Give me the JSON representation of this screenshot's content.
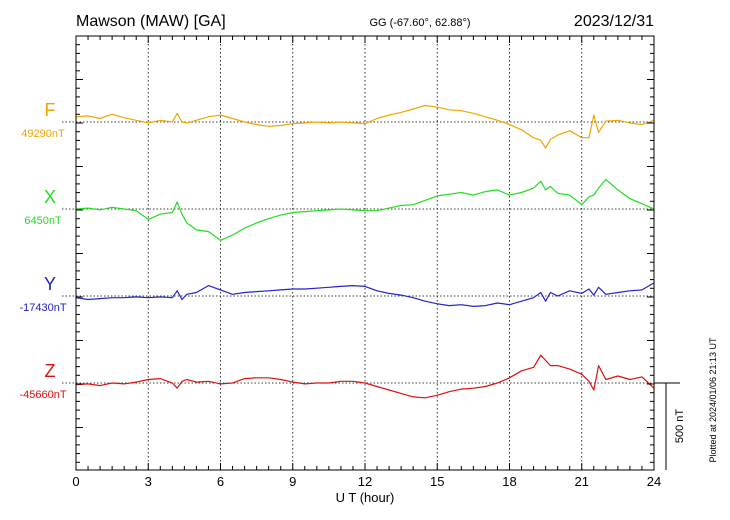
{
  "chart_data": {
    "type": "line",
    "station": "Mawson (MAW)  [GA]",
    "coords": "GG (-67.60°,  62.88°)",
    "date": "2023/12/31",
    "xlabel": "U T (hour)",
    "xlim": [
      0,
      24
    ],
    "xticks": [
      "0",
      "3",
      "6",
      "9",
      "12",
      "15",
      "18",
      "21",
      "24"
    ],
    "scale_label": "500 nT",
    "scale_nT": 500,
    "plotted_note": "Plotted at 2024/01/06 21:13 UT",
    "grid": true,
    "series": [
      {
        "name": "F",
        "baseline_label": "49290nT",
        "baseline": 49290,
        "color": "#f0a500",
        "x": [
          0,
          0.5,
          1,
          1.5,
          2,
          2.5,
          3,
          3.5,
          4,
          4.2,
          4.4,
          4.6,
          5,
          5.5,
          6,
          6.5,
          7,
          7.5,
          8,
          8.5,
          9,
          9.5,
          10,
          10.5,
          11,
          11.5,
          12,
          12.5,
          13,
          13.5,
          14,
          14.5,
          15,
          15.5,
          16,
          16.5,
          17,
          17.5,
          18,
          18.5,
          19,
          19.3,
          19.5,
          19.7,
          20,
          20.5,
          21,
          21.3,
          21.5,
          21.7,
          22,
          22.5,
          23,
          23.5,
          24
        ],
        "y": [
          49320,
          49325,
          49310,
          49335,
          49315,
          49300,
          49285,
          49300,
          49290,
          49340,
          49290,
          49285,
          49300,
          49320,
          49330,
          49310,
          49290,
          49275,
          49265,
          49270,
          49280,
          49285,
          49290,
          49285,
          49290,
          49285,
          49280,
          49310,
          49330,
          49345,
          49365,
          49385,
          49375,
          49360,
          49355,
          49340,
          49320,
          49300,
          49275,
          49245,
          49200,
          49185,
          49140,
          49190,
          49215,
          49240,
          49200,
          49200,
          49330,
          49230,
          49295,
          49300,
          49285,
          49275,
          49300
        ]
      },
      {
        "name": "X",
        "baseline_label": "6450nT",
        "baseline": 6450,
        "color": "#22dd22",
        "x": [
          0,
          0.5,
          1,
          1.5,
          2,
          2.5,
          3,
          3.5,
          4,
          4.2,
          4.4,
          4.6,
          5,
          5.5,
          6,
          6.5,
          7,
          7.5,
          8,
          8.5,
          9,
          9.5,
          10,
          10.5,
          11,
          11.5,
          12,
          12.5,
          13,
          13.5,
          14,
          14.5,
          15,
          15.5,
          16,
          16.5,
          17,
          17.5,
          18,
          18.5,
          19,
          19.3,
          19.5,
          19.7,
          20,
          20.5,
          21,
          21.3,
          21.5,
          21.7,
          22,
          22.5,
          23,
          23.5,
          24
        ],
        "y": [
          6450,
          6455,
          6445,
          6460,
          6450,
          6440,
          6390,
          6420,
          6430,
          6490,
          6420,
          6370,
          6330,
          6320,
          6270,
          6300,
          6340,
          6370,
          6395,
          6415,
          6430,
          6435,
          6440,
          6445,
          6450,
          6445,
          6440,
          6440,
          6455,
          6470,
          6475,
          6500,
          6525,
          6535,
          6545,
          6530,
          6550,
          6560,
          6530,
          6545,
          6570,
          6610,
          6560,
          6580,
          6540,
          6530,
          6475,
          6520,
          6530,
          6570,
          6620,
          6560,
          6510,
          6480,
          6450
        ]
      },
      {
        "name": "Y",
        "baseline_label": "-17430nT",
        "baseline": -17430,
        "color": "#2222cc",
        "x": [
          0,
          0.5,
          1,
          1.5,
          2,
          2.5,
          3,
          3.5,
          4,
          4.2,
          4.4,
          4.6,
          5,
          5.5,
          6,
          6.5,
          7,
          7.5,
          8,
          8.5,
          9,
          9.5,
          10,
          10.5,
          11,
          11.5,
          12,
          12.5,
          13,
          13.5,
          14,
          14.5,
          15,
          15.5,
          16,
          16.5,
          17,
          17.5,
          18,
          18.5,
          19,
          19.3,
          19.5,
          19.7,
          20,
          20.5,
          21,
          21.3,
          21.5,
          21.7,
          22,
          22.5,
          23,
          23.5,
          24
        ],
        "y": [
          -17440,
          -17450,
          -17445,
          -17440,
          -17440,
          -17435,
          -17440,
          -17435,
          -17440,
          -17400,
          -17450,
          -17420,
          -17410,
          -17370,
          -17395,
          -17420,
          -17410,
          -17405,
          -17400,
          -17395,
          -17390,
          -17390,
          -17385,
          -17380,
          -17375,
          -17370,
          -17375,
          -17400,
          -17415,
          -17425,
          -17440,
          -17460,
          -17475,
          -17485,
          -17480,
          -17490,
          -17485,
          -17470,
          -17480,
          -17460,
          -17440,
          -17410,
          -17460,
          -17410,
          -17430,
          -17400,
          -17415,
          -17390,
          -17425,
          -17380,
          -17420,
          -17410,
          -17400,
          -17395,
          -17355
        ]
      },
      {
        "name": "Z",
        "baseline_label": "-45660nT",
        "baseline": -45660,
        "color": "#dd1111",
        "x": [
          0,
          0.5,
          1,
          1.5,
          2,
          2.5,
          3,
          3.5,
          4,
          4.2,
          4.4,
          4.6,
          5,
          5.5,
          6,
          6.5,
          7,
          7.5,
          8,
          8.5,
          9,
          9.5,
          10,
          10.5,
          11,
          11.5,
          12,
          12.5,
          13,
          13.5,
          14,
          14.5,
          15,
          15.5,
          16,
          16.5,
          17,
          17.5,
          18,
          18.5,
          19,
          19.3,
          19.5,
          19.7,
          20,
          20.5,
          21,
          21.3,
          21.5,
          21.7,
          22,
          22.5,
          23,
          23.5,
          24
        ],
        "y": [
          -45670,
          -45665,
          -45675,
          -45660,
          -45665,
          -45655,
          -45640,
          -45635,
          -45660,
          -45690,
          -45650,
          -45640,
          -45655,
          -45650,
          -45665,
          -45660,
          -45635,
          -45630,
          -45630,
          -45640,
          -45655,
          -45665,
          -45660,
          -45660,
          -45650,
          -45650,
          -45660,
          -45680,
          -45700,
          -45720,
          -45740,
          -45745,
          -45730,
          -45710,
          -45695,
          -45690,
          -45680,
          -45660,
          -45630,
          -45590,
          -45570,
          -45500,
          -45530,
          -45560,
          -45560,
          -45580,
          -45610,
          -45650,
          -45700,
          -45560,
          -45640,
          -45620,
          -45640,
          -45625,
          -45690
        ]
      }
    ]
  }
}
